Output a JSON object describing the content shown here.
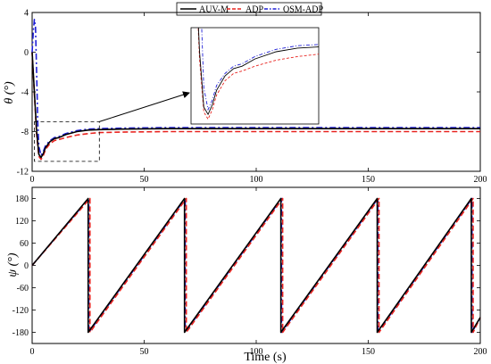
{
  "figure": {
    "xlabel": "Time (s)",
    "legend": [
      {
        "name": "AUV-M",
        "color": "#000000",
        "dash": "solid"
      },
      {
        "name": "ADP",
        "color": "#e8231f",
        "dash": "dashed"
      },
      {
        "name": "OSM-ADP",
        "color": "#1f1fd6",
        "dash": "dashdot"
      }
    ]
  },
  "chart_data": [
    {
      "type": "line",
      "ylabel": "θ (°)",
      "xlim": [
        0,
        200
      ],
      "ylim": [
        -12,
        4
      ],
      "xticks": [
        0,
        50,
        100,
        150,
        200
      ],
      "yticks": [
        -12,
        -8,
        -4,
        0,
        4
      ],
      "grid": false,
      "series": [
        {
          "name": "AUV-M",
          "color": "#000000",
          "dash": "solid",
          "x": [
            0,
            1,
            2,
            3,
            4,
            5,
            6,
            8,
            10,
            12,
            15,
            20,
            25,
            30,
            40,
            60,
            100,
            150,
            200
          ],
          "y": [
            0,
            -4,
            -8,
            -10.3,
            -10.6,
            -10.2,
            -9.6,
            -9.0,
            -8.7,
            -8.6,
            -8.3,
            -8.0,
            -7.85,
            -7.8,
            -7.75,
            -7.7,
            -7.7,
            -7.7,
            -7.7
          ]
        },
        {
          "name": "ADP",
          "color": "#e8231f",
          "dash": "dashed",
          "x": [
            0,
            1,
            2,
            3,
            4,
            5,
            6,
            8,
            10,
            12,
            15,
            20,
            25,
            30,
            40,
            60,
            100,
            150,
            200
          ],
          "y": [
            0,
            -4.2,
            -8.3,
            -10.5,
            -10.8,
            -10.4,
            -9.8,
            -9.2,
            -8.9,
            -8.8,
            -8.6,
            -8.35,
            -8.2,
            -8.1,
            -8.05,
            -8.0,
            -8.0,
            -8.0,
            -8.0
          ]
        },
        {
          "name": "OSM-ADP",
          "color": "#1f1fd6",
          "dash": "dashdot",
          "x": [
            0,
            0.5,
            1,
            1.5,
            2,
            2.5,
            3,
            4,
            5,
            6,
            8,
            10,
            12,
            15,
            20,
            25,
            30,
            40,
            60,
            100,
            150,
            200
          ],
          "y": [
            0,
            2,
            3.3,
            2.5,
            -2,
            -7,
            -9.5,
            -10.4,
            -10.0,
            -9.4,
            -8.9,
            -8.6,
            -8.5,
            -8.2,
            -7.9,
            -7.75,
            -7.7,
            -7.65,
            -7.6,
            -7.6,
            -7.6,
            -7.6
          ]
        }
      ],
      "inset": {
        "xlim": [
          0,
          30
        ],
        "ylim": [
          -11,
          -7
        ],
        "highlight_box": {
          "x": [
            1,
            30
          ],
          "y": [
            -11,
            -7
          ]
        }
      }
    },
    {
      "type": "line",
      "ylabel": "ψ (°)",
      "xlim": [
        0,
        200
      ],
      "ylim": [
        -210,
        210
      ],
      "xticks": [
        0,
        50,
        100,
        150,
        200
      ],
      "yticks": [
        -180,
        -120,
        -60,
        0,
        60,
        120,
        180
      ],
      "grid": false,
      "sawtooth": {
        "start_value": 0,
        "wraps_at": [
          25,
          68,
          111,
          154,
          196
        ],
        "end": 200,
        "end_value": -140
      },
      "series": [
        {
          "name": "AUV-M",
          "color": "#000000",
          "dash": "solid",
          "wraps_at": [
            25,
            68,
            111,
            154,
            196
          ]
        },
        {
          "name": "ADP",
          "color": "#e8231f",
          "dash": "dashed",
          "wraps_at": [
            25.8,
            68.8,
            111.8,
            154.8,
            196.8
          ]
        },
        {
          "name": "OSM-ADP",
          "color": "#1f1fd6",
          "dash": "dashdot",
          "wraps_at": [
            25.3,
            68.3,
            111.3,
            154.3,
            196.3
          ]
        }
      ]
    }
  ]
}
